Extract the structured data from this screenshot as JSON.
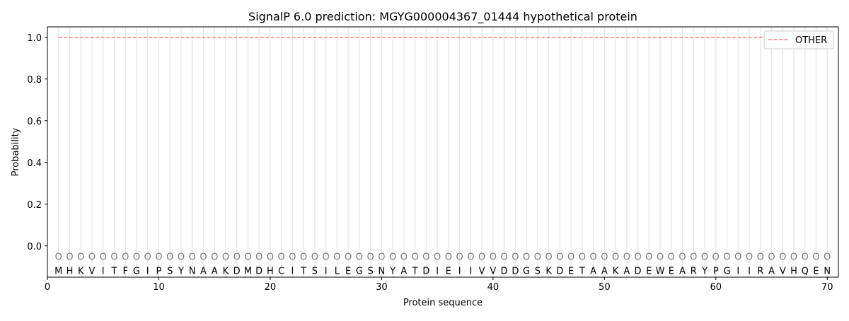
{
  "chart_data": {
    "type": "line",
    "title": "SignalP 6.0 prediction: MGYG000004367_01444 hypothetical protein",
    "xlabel": "Protein sequence",
    "ylabel": "Probability",
    "xlim": [
      0,
      71
    ],
    "ylim": [
      -0.15,
      1.05
    ],
    "xticks": [
      0,
      10,
      20,
      30,
      40,
      50,
      60,
      70
    ],
    "yticks": [
      0.0,
      0.2,
      0.4,
      0.6,
      0.8,
      1.0
    ],
    "ytick_labels": [
      "0.0",
      "0.2",
      "0.4",
      "0.6",
      "0.8",
      "1.0"
    ],
    "grid": "vertical lines at each residue",
    "legend_placement": "top-right",
    "sequence": "MHKVITFGIPSYNAAKDMDHCITSILEGSNYATDIEIIVVDDGSKDETAAKADEWEARYPGIIRAVHQEN",
    "region_label": "O",
    "series": [
      {
        "name": "OTHER",
        "color": "#f08080",
        "style": "dashed",
        "x_start": 1,
        "x_end": 70,
        "value": 1.0
      }
    ]
  }
}
